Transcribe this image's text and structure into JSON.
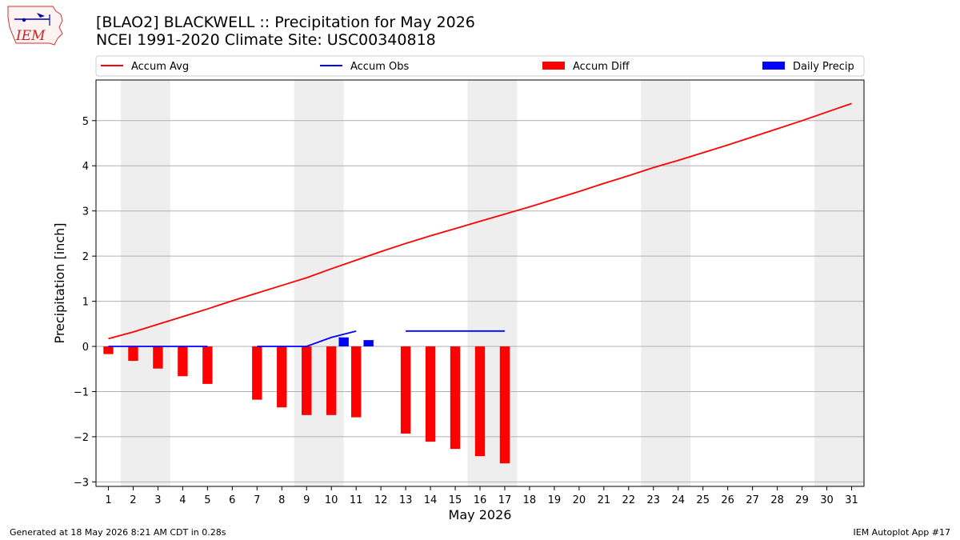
{
  "header": {
    "title_line1": "[BLAO2] BLACKWELL :: Precipitation for May 2026",
    "title_line2": "NCEI 1991-2020 Climate Site: USC00340818",
    "logo_text": "IEM"
  },
  "footer": {
    "left": "Generated at 18 May 2026 8:21 AM CDT in 0.28s",
    "right": "IEM Autoplot App #17"
  },
  "colors": {
    "accum_avg": "#ff0000",
    "accum_obs": "#0000ff",
    "accum_diff": "#ff0000",
    "daily_precip": "#0000ff",
    "weekend_shade": "#eeeeee",
    "grid": "#b0b0b0"
  },
  "chart_data": {
    "type": "bar",
    "xlabel": "May 2026",
    "ylabel": "Precipitation [inch]",
    "days": [
      1,
      2,
      3,
      4,
      5,
      6,
      7,
      8,
      9,
      10,
      11,
      12,
      13,
      14,
      15,
      16,
      17,
      18,
      19,
      20,
      21,
      22,
      23,
      24,
      25,
      26,
      27,
      28,
      29,
      30,
      31
    ],
    "xlim": [
      0.5,
      31.5
    ],
    "ylim": [
      -3.1,
      5.9
    ],
    "yticks": [
      -3,
      -2,
      -1,
      0,
      1,
      2,
      3,
      4,
      5
    ],
    "ytick_labels": [
      "−3",
      "−2",
      "−1",
      "0",
      "1",
      "2",
      "3",
      "4",
      "5"
    ],
    "grid": "horizontal",
    "legend_position": "top",
    "weekend_shading": [
      [
        1.5,
        3.5
      ],
      [
        8.5,
        10.5
      ],
      [
        15.5,
        17.5
      ],
      [
        22.5,
        24.5
      ],
      [
        29.5,
        31.5
      ]
    ],
    "series": [
      {
        "name": "Accum Avg",
        "kind": "line",
        "x": [
          1,
          2,
          3,
          4,
          5,
          6,
          7,
          8,
          9,
          10,
          11,
          12,
          13,
          14,
          15,
          16,
          17,
          18,
          19,
          20,
          21,
          22,
          23,
          24,
          25,
          26,
          27,
          28,
          29,
          30,
          31
        ],
        "values": [
          0.17,
          0.32,
          0.49,
          0.66,
          0.83,
          1.01,
          1.18,
          1.35,
          1.52,
          1.72,
          1.91,
          2.1,
          2.28,
          2.45,
          2.61,
          2.77,
          2.93,
          3.09,
          3.26,
          3.43,
          3.61,
          3.78,
          3.96,
          4.12,
          4.29,
          4.46,
          4.64,
          4.82,
          5.0,
          5.19,
          5.38
        ]
      },
      {
        "name": "Accum Obs",
        "kind": "line",
        "segments": [
          {
            "x": [
              1,
              2,
              3,
              4,
              5
            ],
            "values": [
              0,
              0,
              0,
              0,
              0
            ]
          },
          {
            "x": [
              7,
              8,
              9,
              10,
              11
            ],
            "values": [
              0,
              0,
              0,
              0.2,
              0.34
            ]
          },
          {
            "x": [
              13,
              14,
              15,
              16,
              17
            ],
            "values": [
              0.34,
              0.34,
              0.34,
              0.34,
              0.34
            ]
          }
        ]
      },
      {
        "name": "Accum Diff",
        "kind": "bar",
        "x": [
          1,
          2,
          3,
          4,
          5,
          7,
          8,
          9,
          10,
          11,
          13,
          14,
          15,
          16,
          17
        ],
        "values": [
          -0.17,
          -0.32,
          -0.49,
          -0.66,
          -0.83,
          -1.18,
          -1.35,
          -1.52,
          -1.52,
          -1.57,
          -1.93,
          -2.11,
          -2.27,
          -2.43,
          -2.59
        ]
      },
      {
        "name": "Daily Precip",
        "kind": "bar",
        "x": [
          10,
          11
        ],
        "values": [
          0.2,
          0.14
        ]
      }
    ]
  }
}
